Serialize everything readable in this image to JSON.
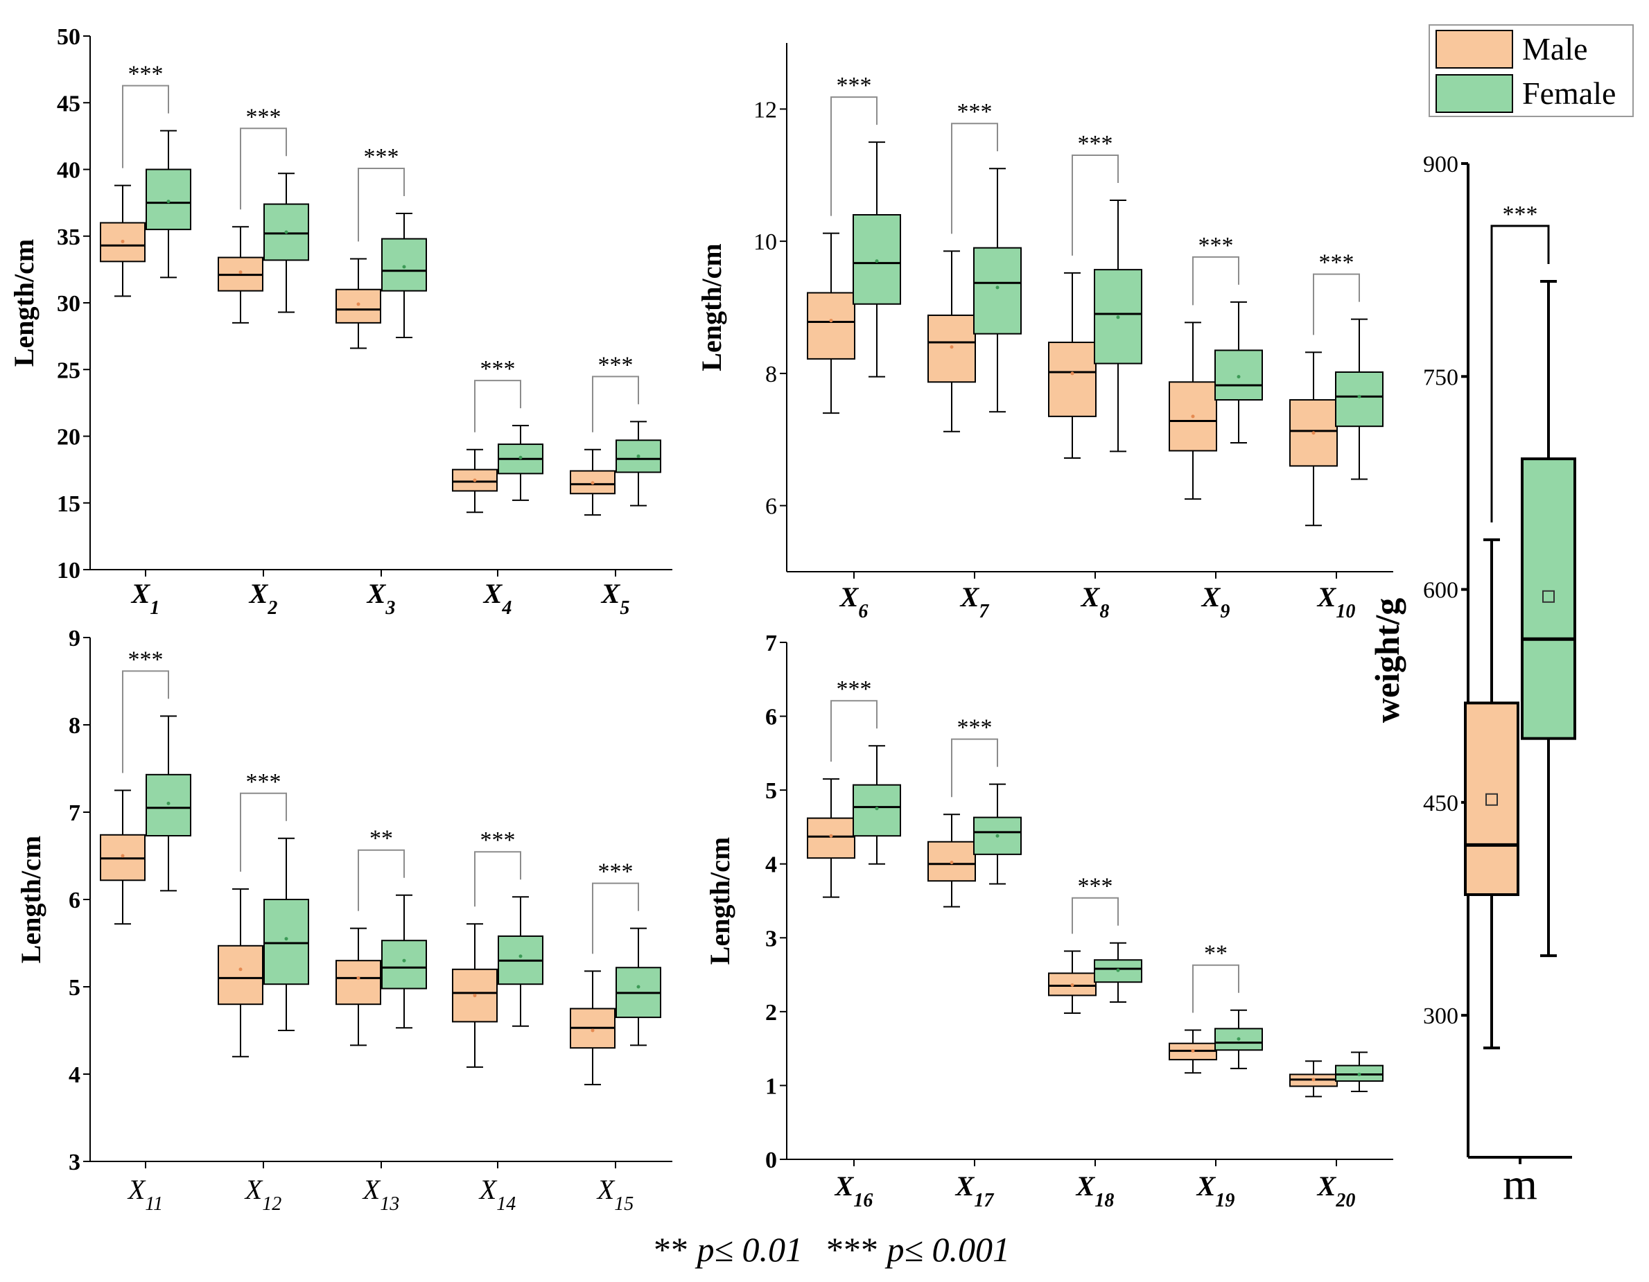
{
  "colors": {
    "male": "#f9c79c",
    "female": "#94d7a6",
    "axis": "#000000",
    "bracket": "#8c8c8c"
  },
  "legend": {
    "entries": [
      "Male",
      "Female"
    ]
  },
  "footnote": {
    "stars2": "**",
    "text2": "p≤ 0.01",
    "stars3": "***",
    "text3": "p≤ 0.001"
  },
  "chart_data": [
    {
      "type": "boxplot",
      "ylabel": "Length/cm",
      "ylim": [
        10,
        50
      ],
      "yticks": [
        10,
        15,
        20,
        25,
        30,
        35,
        40,
        45,
        50
      ],
      "series": [
        "Male",
        "Female"
      ],
      "groups": [
        {
          "label": "X",
          "sub": "1",
          "sig": "***",
          "male": {
            "min": 30.5,
            "q1": 33.1,
            "median": 34.3,
            "q3": 36.0,
            "max": 38.8,
            "mean": 34.6
          },
          "female": {
            "min": 31.9,
            "q1": 35.5,
            "median": 37.5,
            "q3": 40.0,
            "max": 42.9,
            "mean": 37.6
          }
        },
        {
          "label": "X",
          "sub": "2",
          "sig": "***",
          "male": {
            "min": 28.5,
            "q1": 30.9,
            "median": 32.1,
            "q3": 33.4,
            "max": 35.7,
            "mean": 32.3
          },
          "female": {
            "min": 29.3,
            "q1": 33.2,
            "median": 35.2,
            "q3": 37.4,
            "max": 39.7,
            "mean": 35.3
          }
        },
        {
          "label": "X",
          "sub": "3",
          "sig": "***",
          "male": {
            "min": 26.6,
            "q1": 28.5,
            "median": 29.5,
            "q3": 31.0,
            "max": 33.3,
            "mean": 29.9
          },
          "female": {
            "min": 27.4,
            "q1": 30.9,
            "median": 32.4,
            "q3": 34.8,
            "max": 36.7,
            "mean": 32.7
          }
        },
        {
          "label": "X",
          "sub": "4",
          "sig": "***",
          "male": {
            "min": 14.3,
            "q1": 15.9,
            "median": 16.6,
            "q3": 17.5,
            "max": 19.0,
            "mean": 16.7
          },
          "female": {
            "min": 15.2,
            "q1": 17.2,
            "median": 18.3,
            "q3": 19.4,
            "max": 20.8,
            "mean": 18.4
          }
        },
        {
          "label": "X",
          "sub": "5",
          "sig": "***",
          "male": {
            "min": 14.1,
            "q1": 15.7,
            "median": 16.4,
            "q3": 17.4,
            "max": 19.0,
            "mean": 16.5
          },
          "female": {
            "min": 14.8,
            "q1": 17.3,
            "median": 18.3,
            "q3": 19.7,
            "max": 21.1,
            "mean": 18.5
          }
        }
      ]
    },
    {
      "type": "boxplot",
      "ylabel": "Length/cm",
      "ylim": [
        5,
        13
      ],
      "yticks": [
        6,
        8,
        10,
        12
      ],
      "series": [
        "Male",
        "Female"
      ],
      "groups": [
        {
          "label": "X",
          "sub": "6",
          "sig": "***",
          "male": {
            "min": 7.4,
            "q1": 8.22,
            "median": 8.78,
            "q3": 9.22,
            "max": 10.12,
            "mean": 8.8
          },
          "female": {
            "min": 7.95,
            "q1": 9.05,
            "median": 9.67,
            "q3": 10.4,
            "max": 11.5,
            "mean": 9.7
          }
        },
        {
          "label": "X",
          "sub": "7",
          "sig": "***",
          "male": {
            "min": 7.12,
            "q1": 7.87,
            "median": 8.47,
            "q3": 8.88,
            "max": 9.85,
            "mean": 8.4
          },
          "female": {
            "min": 7.42,
            "q1": 8.6,
            "median": 9.37,
            "q3": 9.9,
            "max": 11.1,
            "mean": 9.3
          }
        },
        {
          "label": "X",
          "sub": "8",
          "sig": "***",
          "male": {
            "min": 6.72,
            "q1": 7.35,
            "median": 8.02,
            "q3": 8.47,
            "max": 9.52,
            "mean": 8.0
          },
          "female": {
            "min": 6.82,
            "q1": 8.15,
            "median": 8.9,
            "q3": 9.57,
            "max": 10.62,
            "mean": 8.85
          }
        },
        {
          "label": "X",
          "sub": "9",
          "sig": "***",
          "male": {
            "min": 6.1,
            "q1": 6.83,
            "median": 7.28,
            "q3": 7.87,
            "max": 8.77,
            "mean": 7.35
          },
          "female": {
            "min": 6.95,
            "q1": 7.6,
            "median": 7.82,
            "q3": 8.35,
            "max": 9.08,
            "mean": 7.95
          }
        },
        {
          "label": "X",
          "sub": "10",
          "sig": "***",
          "male": {
            "min": 5.7,
            "q1": 6.6,
            "median": 7.13,
            "q3": 7.6,
            "max": 8.32,
            "mean": 7.1
          },
          "female": {
            "min": 6.4,
            "q1": 7.2,
            "median": 7.65,
            "q3": 8.02,
            "max": 8.82,
            "mean": 7.65
          }
        }
      ]
    },
    {
      "type": "boxplot",
      "ylabel": "Length/cm",
      "ylim": [
        3,
        9
      ],
      "yticks": [
        3,
        4,
        5,
        6,
        7,
        8,
        9
      ],
      "series": [
        "Male",
        "Female"
      ],
      "groups": [
        {
          "label": "X",
          "sub": "11",
          "sig": "***",
          "male": {
            "min": 5.72,
            "q1": 6.22,
            "median": 6.47,
            "q3": 6.74,
            "max": 7.25,
            "mean": 6.5
          },
          "female": {
            "min": 6.1,
            "q1": 6.73,
            "median": 7.05,
            "q3": 7.43,
            "max": 8.1,
            "mean": 7.1
          }
        },
        {
          "label": "X",
          "sub": "12",
          "sig": "***",
          "male": {
            "min": 4.2,
            "q1": 4.8,
            "median": 5.1,
            "q3": 5.47,
            "max": 6.12,
            "mean": 5.2
          },
          "female": {
            "min": 4.5,
            "q1": 5.03,
            "median": 5.5,
            "q3": 6.0,
            "max": 6.7,
            "mean": 5.55
          }
        },
        {
          "label": "X",
          "sub": "13",
          "sig": "**",
          "male": {
            "min": 4.33,
            "q1": 4.8,
            "median": 5.1,
            "q3": 5.3,
            "max": 5.67,
            "mean": 5.1
          },
          "female": {
            "min": 4.53,
            "q1": 4.98,
            "median": 5.22,
            "q3": 5.53,
            "max": 6.05,
            "mean": 5.3
          }
        },
        {
          "label": "X",
          "sub": "14",
          "sig": "***",
          "male": {
            "min": 4.08,
            "q1": 4.6,
            "median": 4.93,
            "q3": 5.2,
            "max": 5.72,
            "mean": 4.9
          },
          "female": {
            "min": 4.55,
            "q1": 5.03,
            "median": 5.3,
            "q3": 5.58,
            "max": 6.03,
            "mean": 5.35
          }
        },
        {
          "label": "X",
          "sub": "15",
          "sig": "***",
          "male": {
            "min": 3.88,
            "q1": 4.3,
            "median": 4.53,
            "q3": 4.75,
            "max": 5.18,
            "mean": 4.5
          },
          "female": {
            "min": 4.33,
            "q1": 4.65,
            "median": 4.93,
            "q3": 5.22,
            "max": 5.67,
            "mean": 5.0
          }
        }
      ]
    },
    {
      "type": "boxplot",
      "ylabel": "Length/cm",
      "ylim": [
        0,
        7
      ],
      "yticks": [
        0,
        1,
        2,
        3,
        4,
        5,
        6,
        7
      ],
      "series": [
        "Male",
        "Female"
      ],
      "groups": [
        {
          "label": "X",
          "sub": "16",
          "sig": "***",
          "male": {
            "min": 3.55,
            "q1": 4.08,
            "median": 4.37,
            "q3": 4.62,
            "max": 5.15,
            "mean": 4.38
          },
          "female": {
            "min": 4.0,
            "q1": 4.38,
            "median": 4.77,
            "q3": 5.07,
            "max": 5.6,
            "mean": 4.75
          }
        },
        {
          "label": "X",
          "sub": "17",
          "sig": "***",
          "male": {
            "min": 3.42,
            "q1": 3.77,
            "median": 4.0,
            "q3": 4.3,
            "max": 4.67,
            "mean": 4.02
          },
          "female": {
            "min": 3.73,
            "q1": 4.13,
            "median": 4.43,
            "q3": 4.63,
            "max": 5.08,
            "mean": 4.38
          }
        },
        {
          "label": "X",
          "sub": "18",
          "sig": "***",
          "male": {
            "min": 1.98,
            "q1": 2.22,
            "median": 2.35,
            "q3": 2.52,
            "max": 2.82,
            "mean": 2.36
          },
          "female": {
            "min": 2.13,
            "q1": 2.4,
            "median": 2.58,
            "q3": 2.7,
            "max": 2.93,
            "mean": 2.56
          }
        },
        {
          "label": "X",
          "sub": "19",
          "sig": "**",
          "male": {
            "min": 1.17,
            "q1": 1.35,
            "median": 1.47,
            "q3": 1.57,
            "max": 1.75,
            "mean": 1.47
          },
          "female": {
            "min": 1.23,
            "q1": 1.48,
            "median": 1.58,
            "q3": 1.77,
            "max": 2.02,
            "mean": 1.63
          }
        },
        {
          "label": "X",
          "sub": "20",
          "sig": "",
          "male": {
            "min": 0.85,
            "q1": 0.99,
            "median": 1.08,
            "q3": 1.15,
            "max": 1.33,
            "mean": 1.08
          },
          "female": {
            "min": 0.92,
            "q1": 1.06,
            "median": 1.15,
            "q3": 1.27,
            "max": 1.45,
            "mean": 1.15
          }
        }
      ]
    },
    {
      "type": "boxplot",
      "ylabel": "weight/g",
      "ylim": [
        200,
        900
      ],
      "yticks": [
        300,
        450,
        600,
        750,
        900
      ],
      "series": [
        "Male",
        "Female"
      ],
      "groups": [
        {
          "label": "m",
          "sub": "",
          "sig": "***",
          "male": {
            "min": 277,
            "q1": 385,
            "median": 420,
            "q3": 520,
            "max": 635,
            "mean": 452
          },
          "female": {
            "min": 342,
            "q1": 495,
            "median": 565,
            "q3": 692,
            "max": 817,
            "mean": 595
          }
        }
      ]
    }
  ]
}
